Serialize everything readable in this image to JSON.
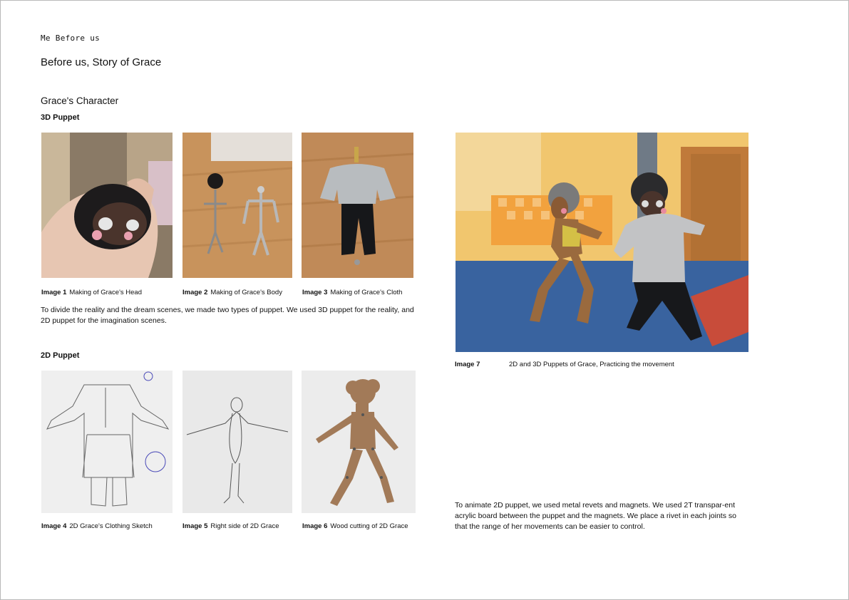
{
  "header": {
    "project": "Me Before us",
    "title": "Before us, Story of Grace"
  },
  "section_title": "Grace's Character",
  "puppet3d": {
    "subtitle": "3D Puppet",
    "images": [
      {
        "label": "Image 1",
        "caption": "Making of Grace's Head"
      },
      {
        "label": "Image 2",
        "caption": "Making of Grace's Body"
      },
      {
        "label": "Image 3",
        "caption": "Making of Grace's Cloth"
      }
    ],
    "description": "To divide the reality and the dream scenes, we made two types of puppet. We used 3D puppet for the reality, and 2D puppet for the imagination scenes."
  },
  "puppet2d": {
    "subtitle": "2D Puppet",
    "images": [
      {
        "label": "Image 4",
        "caption": "2D Grace's Clothing Sketch"
      },
      {
        "label": "Image 5",
        "caption": "Right side of 2D Grace"
      },
      {
        "label": "Image 6",
        "caption": "Wood cutting of 2D Grace"
      }
    ]
  },
  "feature": {
    "label": "Image 7",
    "caption": "2D and 3D Puppets of Grace, Practicing the movement",
    "description": "To animate 2D puppet, we used metal revets and magnets. We used 2T transpar-ent acrylic board between the puppet and the magnets. We place a rivet in each joints so that the range of her movements can be easier to control."
  }
}
